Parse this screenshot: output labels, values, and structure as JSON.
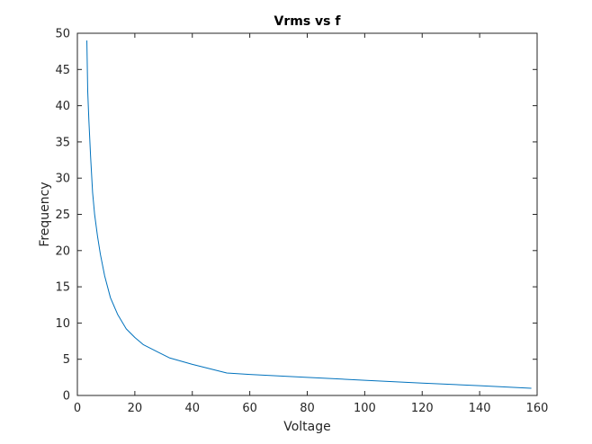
{
  "chart_data": {
    "type": "line",
    "title": "Vrms vs f",
    "xlabel": "Voltage",
    "ylabel": "Frequency",
    "xlim": [
      0,
      160
    ],
    "ylim": [
      0,
      50
    ],
    "xticks": [
      0,
      20,
      40,
      60,
      80,
      100,
      120,
      140,
      160
    ],
    "yticks": [
      0,
      5,
      10,
      15,
      20,
      25,
      30,
      35,
      40,
      45,
      50
    ],
    "grid": false,
    "series": [
      {
        "color": "#0072BD",
        "x": [
          3.3,
          3.6,
          4.0,
          4.6,
          5.3,
          6.0,
          7.0,
          8.0,
          9.5,
          11.5,
          14.0,
          17.0,
          20.0,
          23.0,
          28.0,
          32.0,
          40.0,
          52.0,
          60.0,
          80.0,
          100.0,
          120.0,
          140.0,
          158.0
        ],
        "y": [
          49,
          42,
          38,
          33,
          28,
          25,
          22,
          19.5,
          16.5,
          13.5,
          11.2,
          9.2,
          8.0,
          7.0,
          6.0,
          5.2,
          4.3,
          3.1,
          2.9,
          2.5,
          2.1,
          1.7,
          1.35,
          1.0
        ]
      }
    ]
  }
}
